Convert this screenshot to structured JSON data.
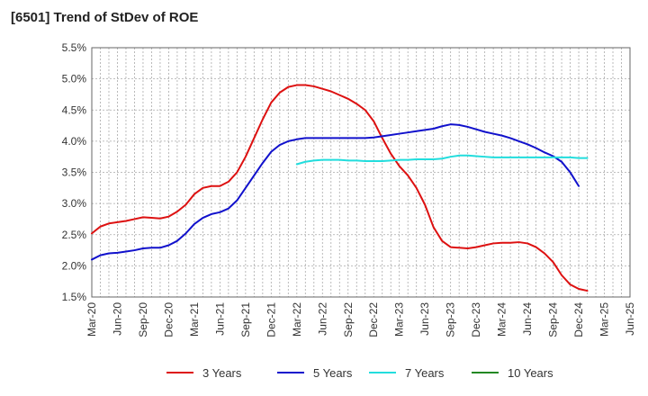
{
  "chart_data": {
    "type": "line",
    "title": "[6501]  Trend of StDev of ROE",
    "xlabel": "",
    "ylabel": "",
    "ylim": [
      1.5,
      5.5
    ],
    "y_ticks": [
      "1.5%",
      "2.0%",
      "2.5%",
      "3.0%",
      "3.5%",
      "4.0%",
      "4.5%",
      "5.0%",
      "5.5%"
    ],
    "x_ticks": [
      "Mar-20",
      "Jun-20",
      "Sep-20",
      "Dec-20",
      "Mar-21",
      "Jun-21",
      "Sep-21",
      "Dec-21",
      "Mar-22",
      "Jun-22",
      "Sep-22",
      "Dec-22",
      "Mar-23",
      "Jun-23",
      "Sep-23",
      "Dec-23",
      "Mar-24",
      "Jun-24",
      "Sep-24",
      "Dec-24",
      "Mar-25",
      "Jun-25"
    ],
    "grid": true,
    "legend_position": "bottom",
    "series": [
      {
        "name": "3 Years",
        "color": "#dd1111",
        "start_index": 0,
        "values": [
          2.52,
          2.63,
          2.68,
          2.7,
          2.72,
          2.75,
          2.78,
          2.77,
          2.76,
          2.79,
          2.87,
          2.98,
          3.15,
          3.25,
          3.28,
          3.28,
          3.35,
          3.5,
          3.75,
          4.05,
          4.35,
          4.62,
          4.78,
          4.87,
          4.9,
          4.9,
          4.88,
          4.84,
          4.8,
          4.74,
          4.68,
          4.6,
          4.5,
          4.32,
          4.05,
          3.8,
          3.6,
          3.45,
          3.25,
          2.98,
          2.62,
          2.4,
          2.3,
          2.29,
          2.28,
          2.3,
          2.33,
          2.36,
          2.37,
          2.37,
          2.38,
          2.36,
          2.3,
          2.2,
          2.06,
          1.85,
          1.7,
          1.63,
          1.6
        ]
      },
      {
        "name": "5 Years",
        "color": "#1111cc",
        "start_index": 0,
        "values": [
          2.1,
          2.17,
          2.2,
          2.21,
          2.23,
          2.25,
          2.28,
          2.29,
          2.29,
          2.33,
          2.4,
          2.52,
          2.67,
          2.77,
          2.83,
          2.86,
          2.92,
          3.05,
          3.25,
          3.45,
          3.65,
          3.83,
          3.94,
          4.0,
          4.03,
          4.05,
          4.05,
          4.05,
          4.05,
          4.05,
          4.05,
          4.05,
          4.05,
          4.06,
          4.08,
          4.1,
          4.12,
          4.14,
          4.16,
          4.18,
          4.2,
          4.24,
          4.27,
          4.26,
          4.23,
          4.19,
          4.15,
          4.12,
          4.09,
          4.05,
          4.0,
          3.95,
          3.89,
          3.82,
          3.76,
          3.67,
          3.5,
          3.28
        ]
      },
      {
        "name": "7 Years",
        "color": "#22dddd",
        "start_index": 24,
        "values": [
          3.63,
          3.67,
          3.69,
          3.7,
          3.7,
          3.7,
          3.69,
          3.69,
          3.68,
          3.68,
          3.68,
          3.69,
          3.7,
          3.7,
          3.71,
          3.71,
          3.71,
          3.72,
          3.75,
          3.77,
          3.77,
          3.76,
          3.75,
          3.74,
          3.74,
          3.74,
          3.74,
          3.74,
          3.74,
          3.74,
          3.74,
          3.74,
          3.74,
          3.73,
          3.73
        ]
      },
      {
        "name": "10 Years",
        "color": "#228822",
        "start_index": 0,
        "values": []
      }
    ]
  }
}
